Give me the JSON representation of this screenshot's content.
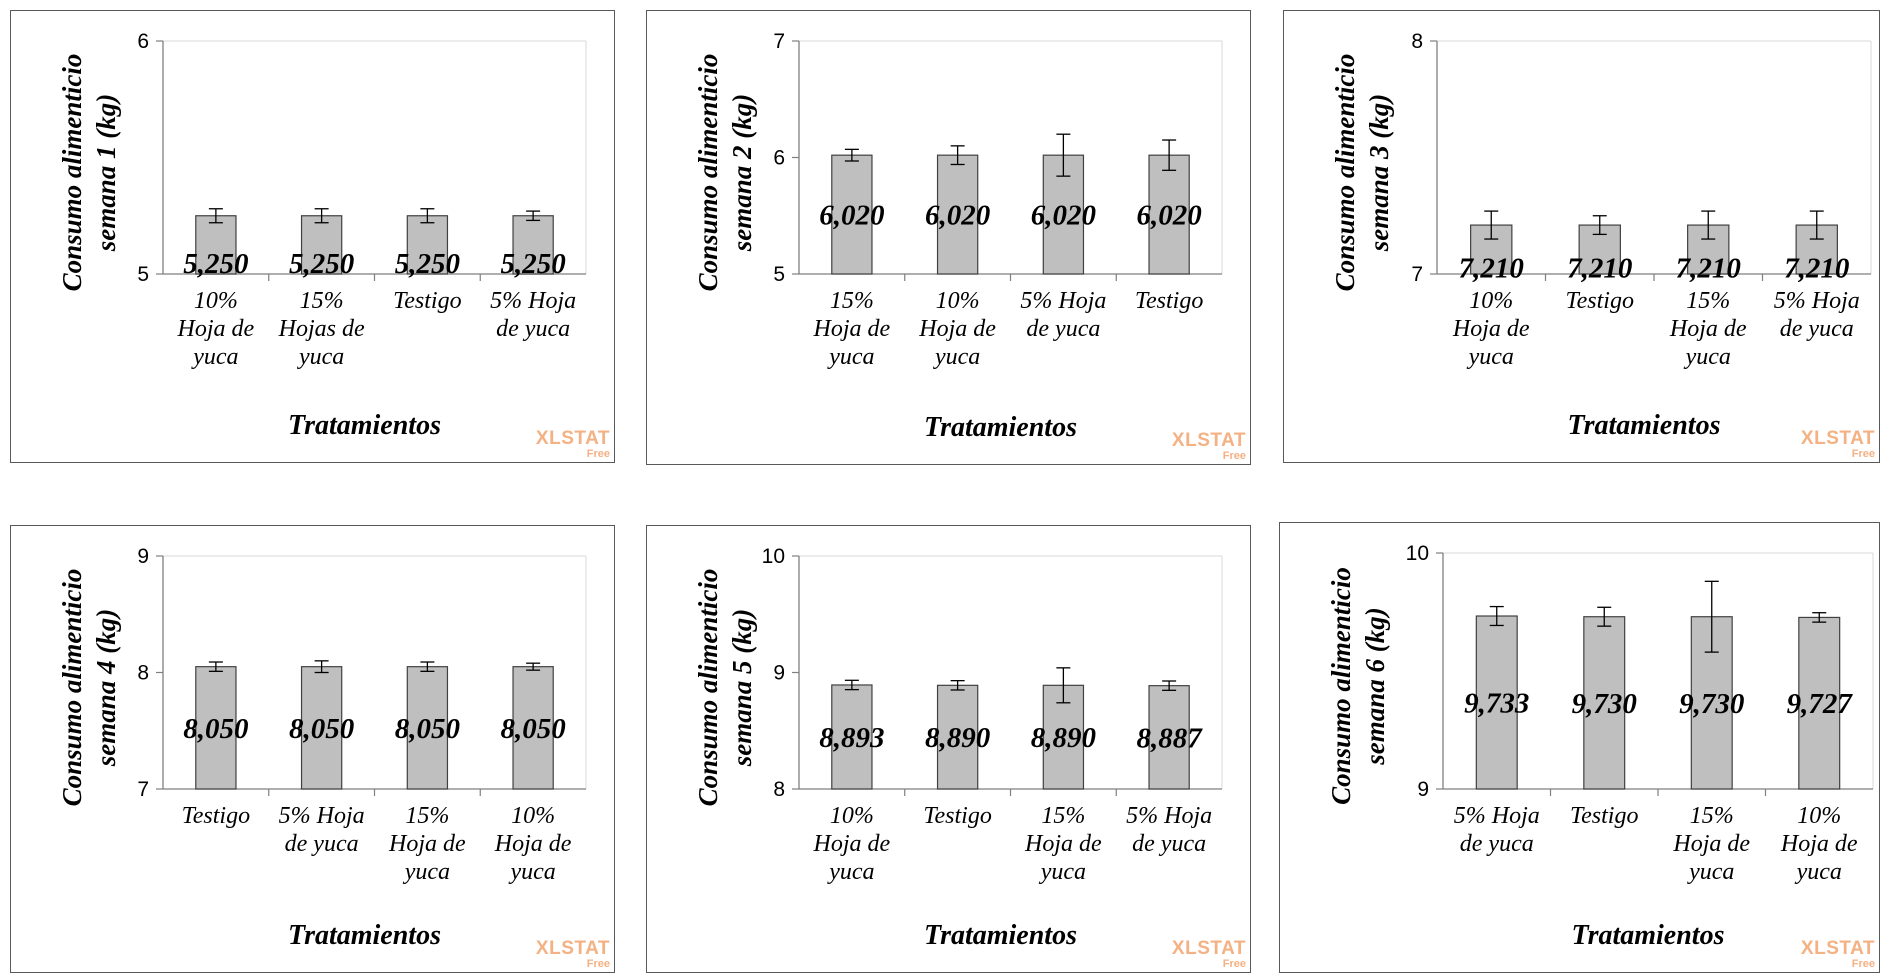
{
  "watermark": {
    "brand": "XLSTAT",
    "edition": "Free",
    "color": "#f4b183"
  },
  "colors": {
    "bar_fill": "#bfbfbf",
    "bar_stroke": "#404040",
    "axis": "#7f7f7f",
    "frame": "#595959"
  },
  "chart_data": [
    {
      "type": "bar",
      "ylabel_lines": [
        "Consumo alimenticio",
        "semana 1 (kg)"
      ],
      "xlabel": "Tratamientos",
      "ylim": [
        5,
        6
      ],
      "yticks": [
        "5",
        "6"
      ],
      "categories": [
        [
          "10%",
          "Hoja de",
          "yuca"
        ],
        [
          "15%",
          "Hojas de",
          "yuca"
        ],
        [
          "Testigo"
        ],
        [
          "5% Hoja",
          "de yuca"
        ]
      ],
      "values": [
        5.25,
        5.25,
        5.25,
        5.25
      ],
      "errors": [
        0.03,
        0.03,
        0.03,
        0.02
      ],
      "value_labels": [
        "5,250",
        "5,250",
        "5,250",
        "5,250"
      ]
    },
    {
      "type": "bar",
      "ylabel_lines": [
        "Consumo alimenticio",
        "semana 2 (kg)"
      ],
      "xlabel": "Tratamientos",
      "ylim": [
        5,
        7
      ],
      "yticks": [
        "5",
        "6",
        "7"
      ],
      "categories": [
        [
          "15%",
          "Hoja de",
          "yuca"
        ],
        [
          "10%",
          "Hoja de",
          "yuca"
        ],
        [
          "5% Hoja",
          "de yuca"
        ],
        [
          "Testigo"
        ]
      ],
      "values": [
        6.02,
        6.02,
        6.02,
        6.02
      ],
      "errors": [
        0.05,
        0.08,
        0.18,
        0.13
      ],
      "value_labels": [
        "6,020",
        "6,020",
        "6,020",
        "6,020"
      ]
    },
    {
      "type": "bar",
      "ylabel_lines": [
        "Consumo alimenticio",
        "semana 3 (kg)"
      ],
      "xlabel": "Tratamientos",
      "ylim": [
        7,
        8
      ],
      "yticks": [
        "7",
        "8"
      ],
      "categories": [
        [
          "10%",
          "Hoja de",
          "yuca"
        ],
        [
          "Testigo"
        ],
        [
          "15%",
          "Hoja de",
          "yuca"
        ],
        [
          "5% Hoja",
          "de yuca"
        ]
      ],
      "values": [
        7.21,
        7.21,
        7.21,
        7.21
      ],
      "errors": [
        0.06,
        0.04,
        0.06,
        0.06
      ],
      "value_labels": [
        "7,210",
        "7,210",
        "7,210",
        "7,210"
      ]
    },
    {
      "type": "bar",
      "ylabel_lines": [
        "Consumo alimenticio",
        "semana 4 (kg)"
      ],
      "xlabel": "Tratamientos",
      "ylim": [
        7,
        9
      ],
      "yticks": [
        "7",
        "8",
        "9"
      ],
      "categories": [
        [
          "Testigo"
        ],
        [
          "5% Hoja",
          "de yuca"
        ],
        [
          "15%",
          "Hoja de",
          "yuca"
        ],
        [
          "10%",
          "Hoja de",
          "yuca"
        ]
      ],
      "values": [
        8.05,
        8.05,
        8.05,
        8.05
      ],
      "errors": [
        0.04,
        0.05,
        0.04,
        0.03
      ],
      "value_labels": [
        "8,050",
        "8,050",
        "8,050",
        "8,050"
      ]
    },
    {
      "type": "bar",
      "ylabel_lines": [
        "Consumo alimenticio",
        "semana 5 (kg)"
      ],
      "xlabel": "Tratamientos",
      "ylim": [
        8,
        10
      ],
      "yticks": [
        "8",
        "9",
        "10"
      ],
      "categories": [
        [
          "10%",
          "Hoja de",
          "yuca"
        ],
        [
          "Testigo"
        ],
        [
          "15%",
          "Hoja de",
          "yuca"
        ],
        [
          "5% Hoja",
          "de yuca"
        ]
      ],
      "values": [
        8.893,
        8.89,
        8.89,
        8.887
      ],
      "errors": [
        0.04,
        0.04,
        0.15,
        0.04
      ],
      "value_labels": [
        "8,893",
        "8,890",
        "8,890",
        "8,887"
      ]
    },
    {
      "type": "bar",
      "ylabel_lines": [
        "Consumo alimenticio",
        "semana 6 (kg)"
      ],
      "xlabel": "Tratamientos",
      "ylim": [
        9,
        10
      ],
      "yticks": [
        "9",
        "10"
      ],
      "categories": [
        [
          "5% Hoja",
          "de yuca"
        ],
        [
          "Testigo"
        ],
        [
          "15%",
          "Hoja de",
          "yuca"
        ],
        [
          "10%",
          "Hoja de",
          "yuca"
        ]
      ],
      "values": [
        9.733,
        9.73,
        9.73,
        9.727
      ],
      "errors": [
        0.04,
        0.04,
        0.15,
        0.02
      ],
      "value_labels": [
        "9,733",
        "9,730",
        "9,730",
        "9,727"
      ]
    }
  ]
}
